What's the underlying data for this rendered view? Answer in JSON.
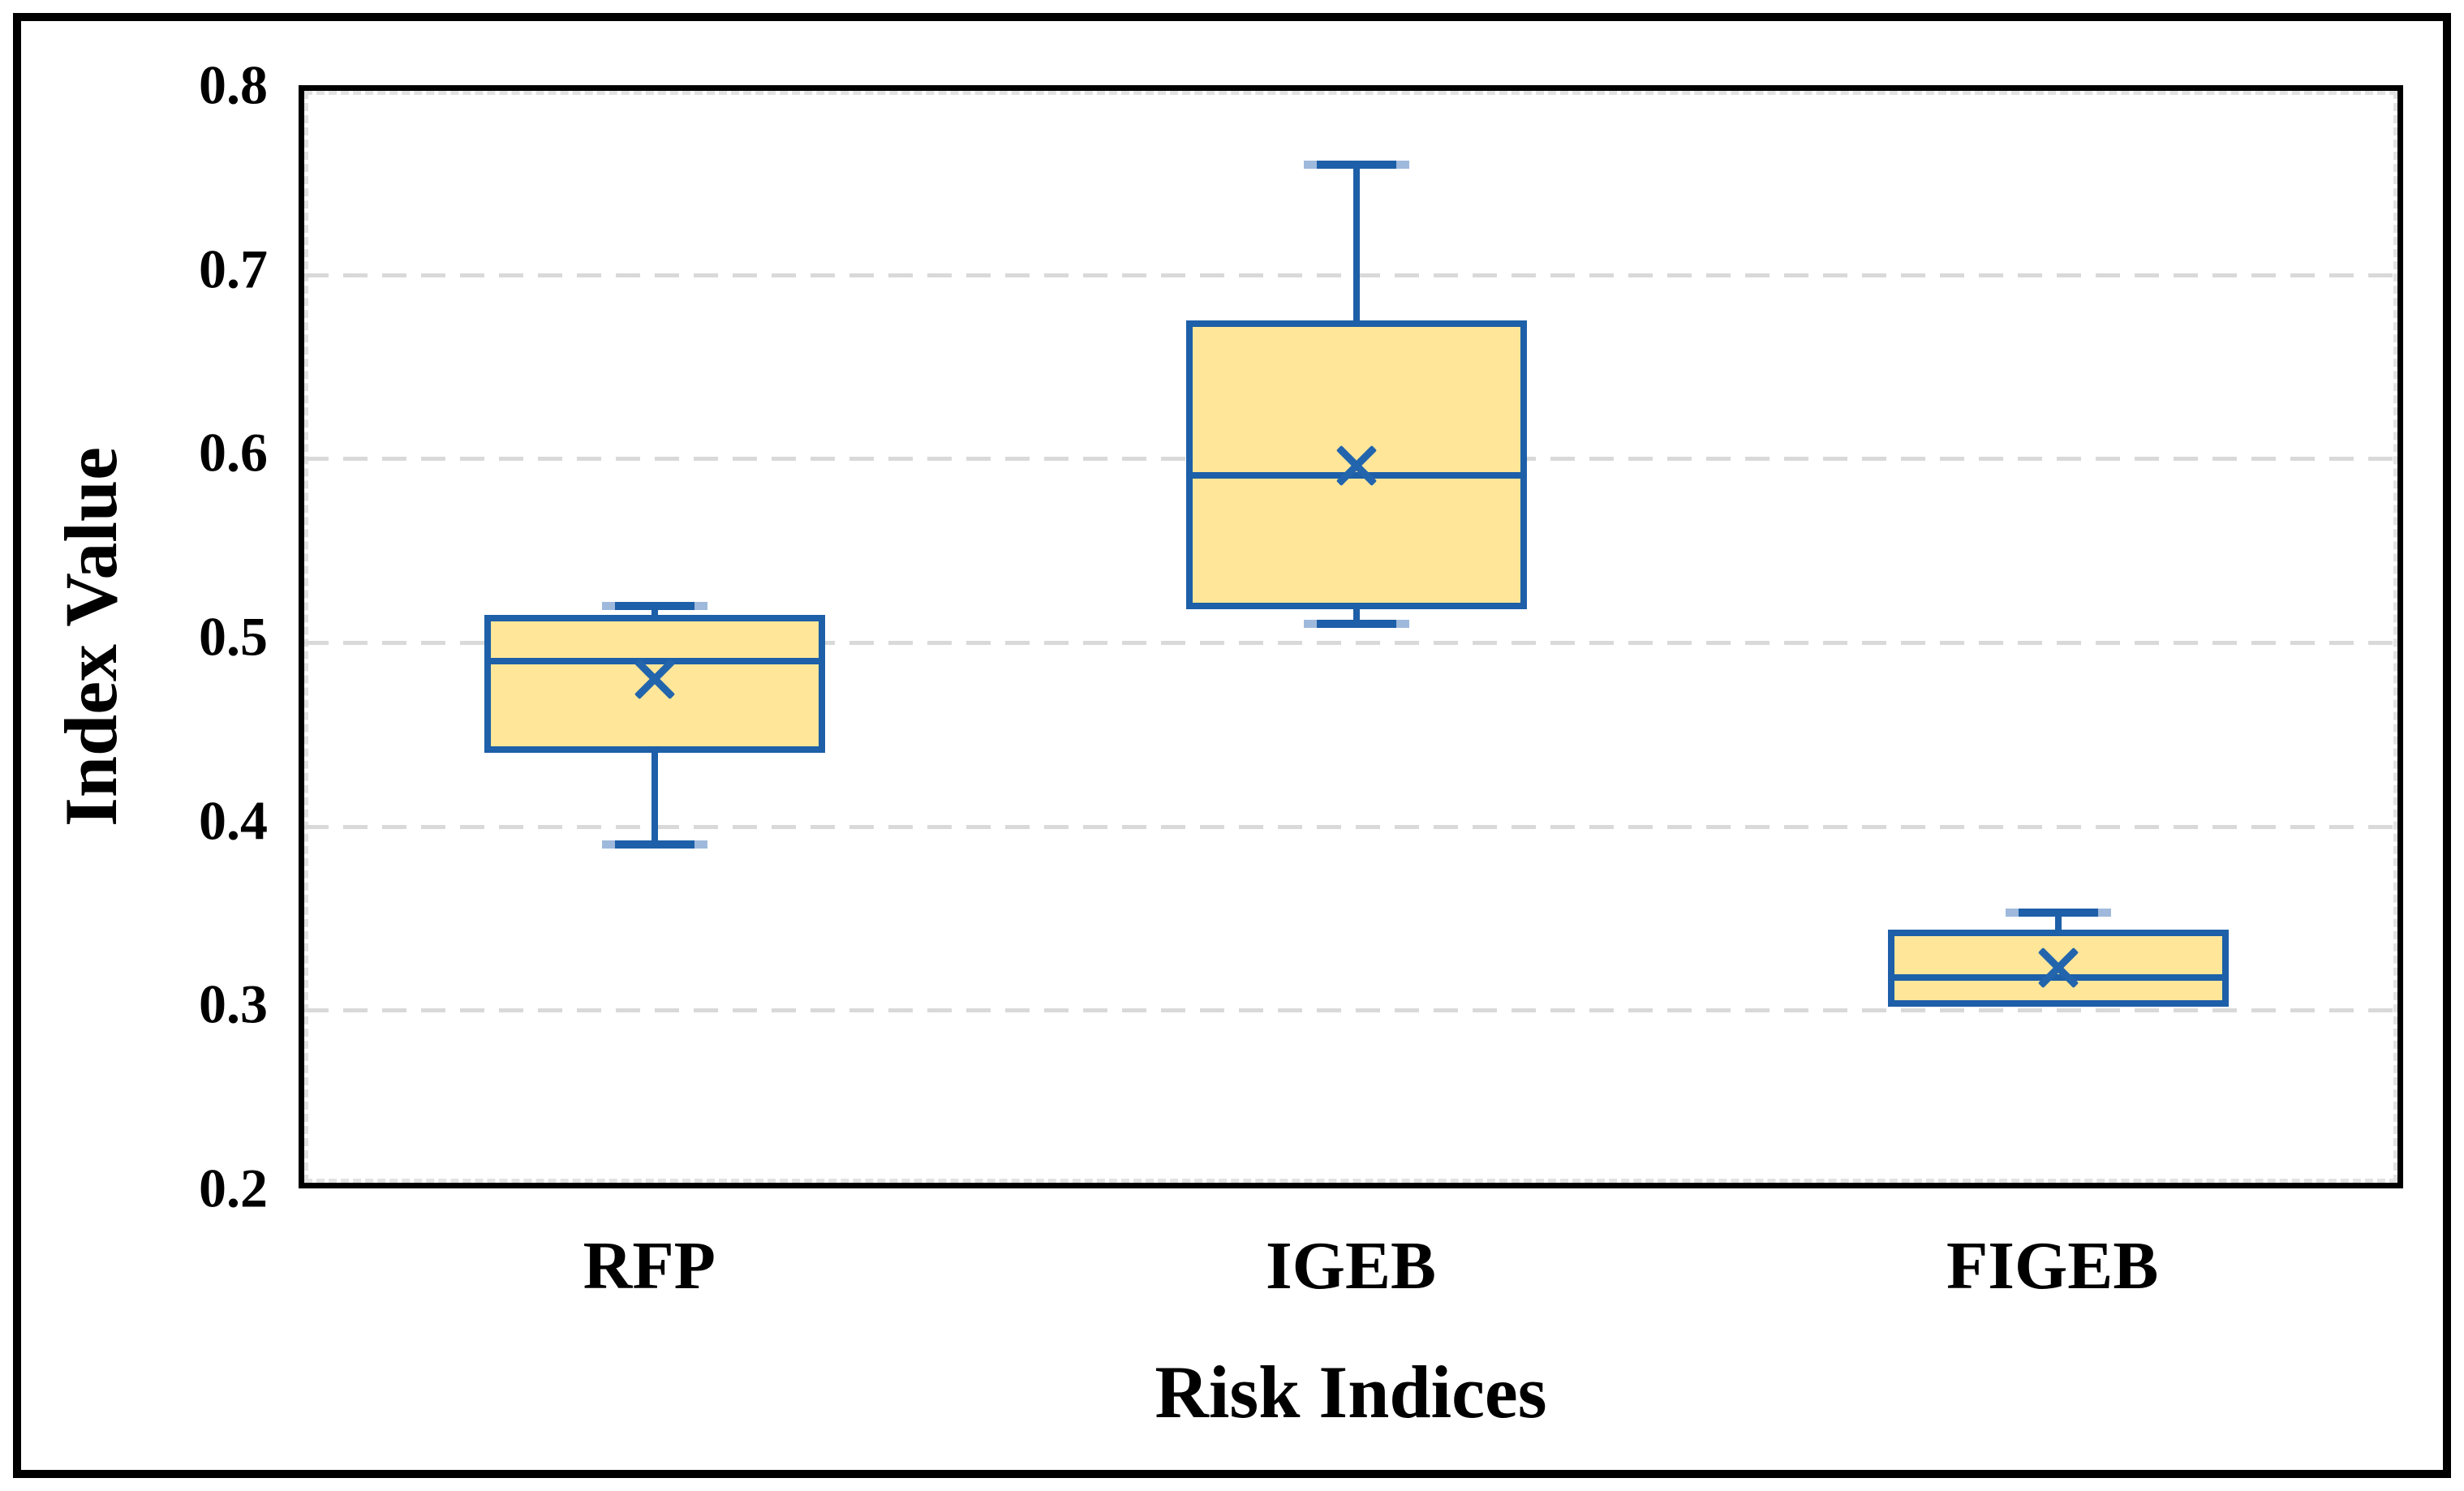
{
  "figure": {
    "background": "#FFFFFF",
    "frame_color": "#000000"
  },
  "chart_data": {
    "type": "box",
    "title": "",
    "xlabel": "Risk Indices",
    "ylabel": "Index Value",
    "ylim": [
      0.2,
      0.8
    ],
    "yticks": [
      {
        "value": 0.8,
        "label": "0.8"
      },
      {
        "value": 0.7,
        "label": "0.7"
      },
      {
        "value": 0.6,
        "label": "0.6"
      },
      {
        "value": 0.5,
        "label": "0.5"
      },
      {
        "value": 0.4,
        "label": "0.4"
      },
      {
        "value": 0.3,
        "label": "0.3"
      },
      {
        "value": 0.2,
        "label": "0.2"
      }
    ],
    "grid": "horizontal-dashed",
    "legend_position": "none",
    "categories": [
      "RFP",
      "IGEB",
      "FIGEB"
    ],
    "series": [
      {
        "name": "RFP",
        "min": 0.39,
        "q1": 0.44,
        "median": 0.49,
        "q3": 0.515,
        "max": 0.52,
        "mean": 0.48
      },
      {
        "name": "IGEB",
        "min": 0.51,
        "q1": 0.518,
        "median": 0.591,
        "q3": 0.675,
        "max": 0.76,
        "mean": 0.596
      },
      {
        "name": "FIGEB",
        "min": 0.302,
        "q1": 0.302,
        "median": 0.318,
        "q3": 0.344,
        "max": 0.353,
        "mean": 0.323
      }
    ],
    "marker": "x-mean-marker",
    "colors": {
      "box_fill": "#FFE699",
      "box_border": "#1D5FA8",
      "whisker": "#1D5FA8",
      "whisker_tip": "#9FB9DC",
      "mean_marker": "#2365AD",
      "gridline": "#D9D9D9",
      "axis_border": "#000000",
      "text": "#000000"
    }
  }
}
